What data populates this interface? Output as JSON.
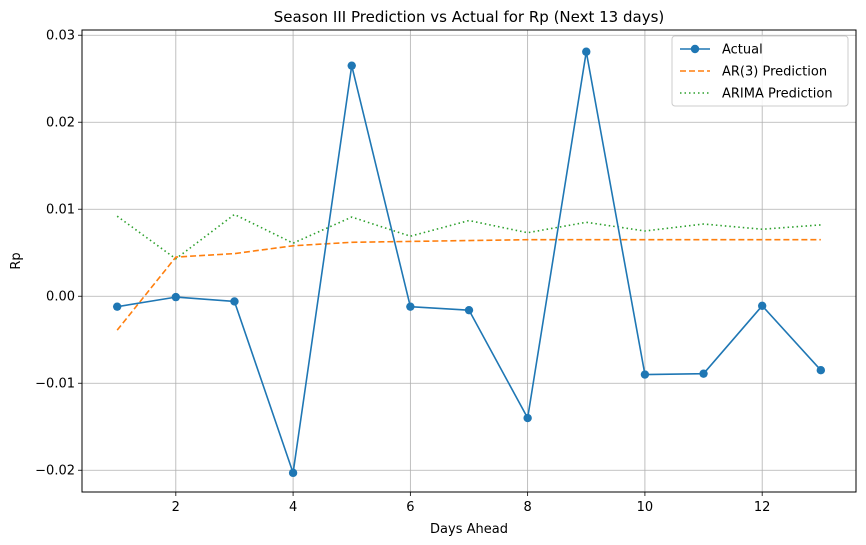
{
  "chart_data": {
    "type": "line",
    "title": "Season III Prediction vs Actual for Rp (Next 13 days)",
    "xlabel": "Days Ahead",
    "ylabel": "Rp",
    "x": [
      1,
      2,
      3,
      4,
      5,
      6,
      7,
      8,
      9,
      10,
      11,
      12,
      13
    ],
    "xlim": [
      0.4,
      13.6
    ],
    "ylim": [
      -0.0225,
      0.0306
    ],
    "x_ticks": [
      2,
      4,
      6,
      8,
      10,
      12
    ],
    "x_tick_labels": [
      "2",
      "4",
      "6",
      "8",
      "10",
      "12"
    ],
    "y_ticks": [
      -0.02,
      -0.01,
      0.0,
      0.01,
      0.02,
      0.03
    ],
    "y_tick_labels": [
      "−0.02",
      "−0.01",
      "0.00",
      "0.01",
      "0.02",
      "0.03"
    ],
    "grid": true,
    "legend_position": "top-right",
    "series": [
      {
        "name": "Actual",
        "style": "solid-marker",
        "color": "#1f77b4",
        "values": [
          -0.0012,
          -0.0001,
          -0.0006,
          -0.0203,
          0.0265,
          -0.0012,
          -0.0016,
          -0.014,
          0.0281,
          -0.009,
          -0.0089,
          -0.0011,
          -0.0085
        ]
      },
      {
        "name": "AR(3) Prediction",
        "style": "dashed",
        "color": "#ff7f0e",
        "values": [
          -0.0039,
          0.0045,
          0.0049,
          0.0058,
          0.0062,
          0.0063,
          0.0064,
          0.0065,
          0.0065,
          0.0065,
          0.0065,
          0.0065,
          0.0065
        ]
      },
      {
        "name": "ARIMA Prediction",
        "style": "dotted",
        "color": "#2ca02c",
        "values": [
          0.0092,
          0.0043,
          0.0094,
          0.0061,
          0.0091,
          0.0069,
          0.0087,
          0.0073,
          0.0085,
          0.0075,
          0.0083,
          0.0077,
          0.0082
        ]
      }
    ]
  }
}
